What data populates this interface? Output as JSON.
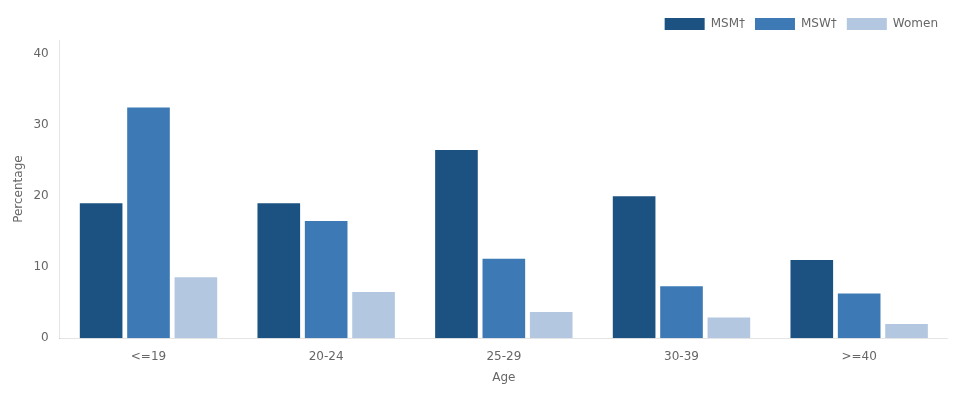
{
  "chart_data": {
    "type": "bar",
    "categories": [
      "<=19",
      "20-24",
      "25-29",
      "30-39",
      ">=40"
    ],
    "series": [
      {
        "name": "MSM†",
        "color": "#1b5282",
        "values": [
          19,
          19,
          26.5,
          20,
          11
        ]
      },
      {
        "name": "MSW†",
        "color": "#3d7ab5",
        "values": [
          32.5,
          16.5,
          11.2,
          7.3,
          6.3
        ]
      },
      {
        "name": "Women",
        "color": "#b4c7e0",
        "values": [
          8.6,
          6.5,
          3.7,
          2.9,
          2.0
        ]
      }
    ],
    "xlabel": "Age",
    "ylabel": "Percentage",
    "ylim": [
      0,
      42
    ],
    "yticks": [
      0,
      10,
      20,
      30,
      40
    ],
    "grid": false,
    "legend": "upper right"
  }
}
